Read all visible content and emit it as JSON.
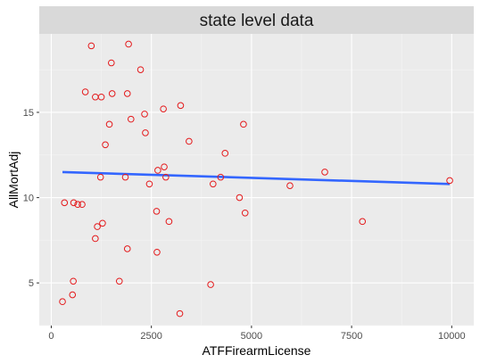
{
  "chart_data": {
    "type": "scatter",
    "title": "state level data",
    "xlabel": "ATFFirearmLicense",
    "ylabel": "AllMortAdj",
    "xlim": [
      -300,
      10550
    ],
    "ylim": [
      2.5,
      19.6
    ],
    "x_ticks": [
      0,
      2500,
      5000,
      7500,
      10000
    ],
    "x_tick_labels": [
      "0",
      "2500",
      "5000",
      "7500",
      "10000"
    ],
    "y_ticks": [
      5,
      10,
      15
    ],
    "y_tick_labels": [
      "5",
      "10",
      "15"
    ],
    "grid": true,
    "background_color": "#ebebeb",
    "strip_color": "#d9d9d9",
    "point_color": "#e41a1c",
    "line_color": "#3366ff",
    "points": [
      {
        "x": 280,
        "y": 3.9
      },
      {
        "x": 330,
        "y": 9.7
      },
      {
        "x": 530,
        "y": 4.3
      },
      {
        "x": 550,
        "y": 5.1
      },
      {
        "x": 560,
        "y": 9.7
      },
      {
        "x": 660,
        "y": 9.6
      },
      {
        "x": 770,
        "y": 9.6
      },
      {
        "x": 850,
        "y": 16.2
      },
      {
        "x": 1000,
        "y": 18.9
      },
      {
        "x": 1100,
        "y": 15.9
      },
      {
        "x": 1100,
        "y": 7.6
      },
      {
        "x": 1150,
        "y": 8.3
      },
      {
        "x": 1230,
        "y": 11.2
      },
      {
        "x": 1250,
        "y": 15.9
      },
      {
        "x": 1280,
        "y": 8.5
      },
      {
        "x": 1350,
        "y": 13.1
      },
      {
        "x": 1450,
        "y": 14.3
      },
      {
        "x": 1500,
        "y": 17.9
      },
      {
        "x": 1520,
        "y": 16.1
      },
      {
        "x": 1700,
        "y": 5.1
      },
      {
        "x": 1850,
        "y": 11.2
      },
      {
        "x": 1900,
        "y": 16.1
      },
      {
        "x": 1900,
        "y": 7.0
      },
      {
        "x": 1930,
        "y": 19.0
      },
      {
        "x": 1990,
        "y": 14.6
      },
      {
        "x": 2230,
        "y": 17.5
      },
      {
        "x": 2330,
        "y": 14.9
      },
      {
        "x": 2350,
        "y": 13.8
      },
      {
        "x": 2450,
        "y": 10.8
      },
      {
        "x": 2630,
        "y": 9.2
      },
      {
        "x": 2640,
        "y": 6.8
      },
      {
        "x": 2660,
        "y": 11.6
      },
      {
        "x": 2800,
        "y": 15.2
      },
      {
        "x": 2820,
        "y": 11.8
      },
      {
        "x": 2860,
        "y": 11.2
      },
      {
        "x": 2940,
        "y": 8.6
      },
      {
        "x": 3210,
        "y": 3.2
      },
      {
        "x": 3230,
        "y": 15.4
      },
      {
        "x": 3440,
        "y": 13.3
      },
      {
        "x": 3980,
        "y": 4.9
      },
      {
        "x": 4040,
        "y": 10.8
      },
      {
        "x": 4230,
        "y": 11.2
      },
      {
        "x": 4340,
        "y": 12.6
      },
      {
        "x": 4700,
        "y": 10.0
      },
      {
        "x": 4800,
        "y": 14.3
      },
      {
        "x": 4840,
        "y": 9.1
      },
      {
        "x": 5960,
        "y": 10.7
      },
      {
        "x": 6830,
        "y": 11.5
      },
      {
        "x": 7770,
        "y": 8.6
      },
      {
        "x": 9950,
        "y": 11.0
      }
    ],
    "trend_line": {
      "x": [
        280,
        9950
      ],
      "y": [
        11.5,
        10.8
      ]
    }
  }
}
